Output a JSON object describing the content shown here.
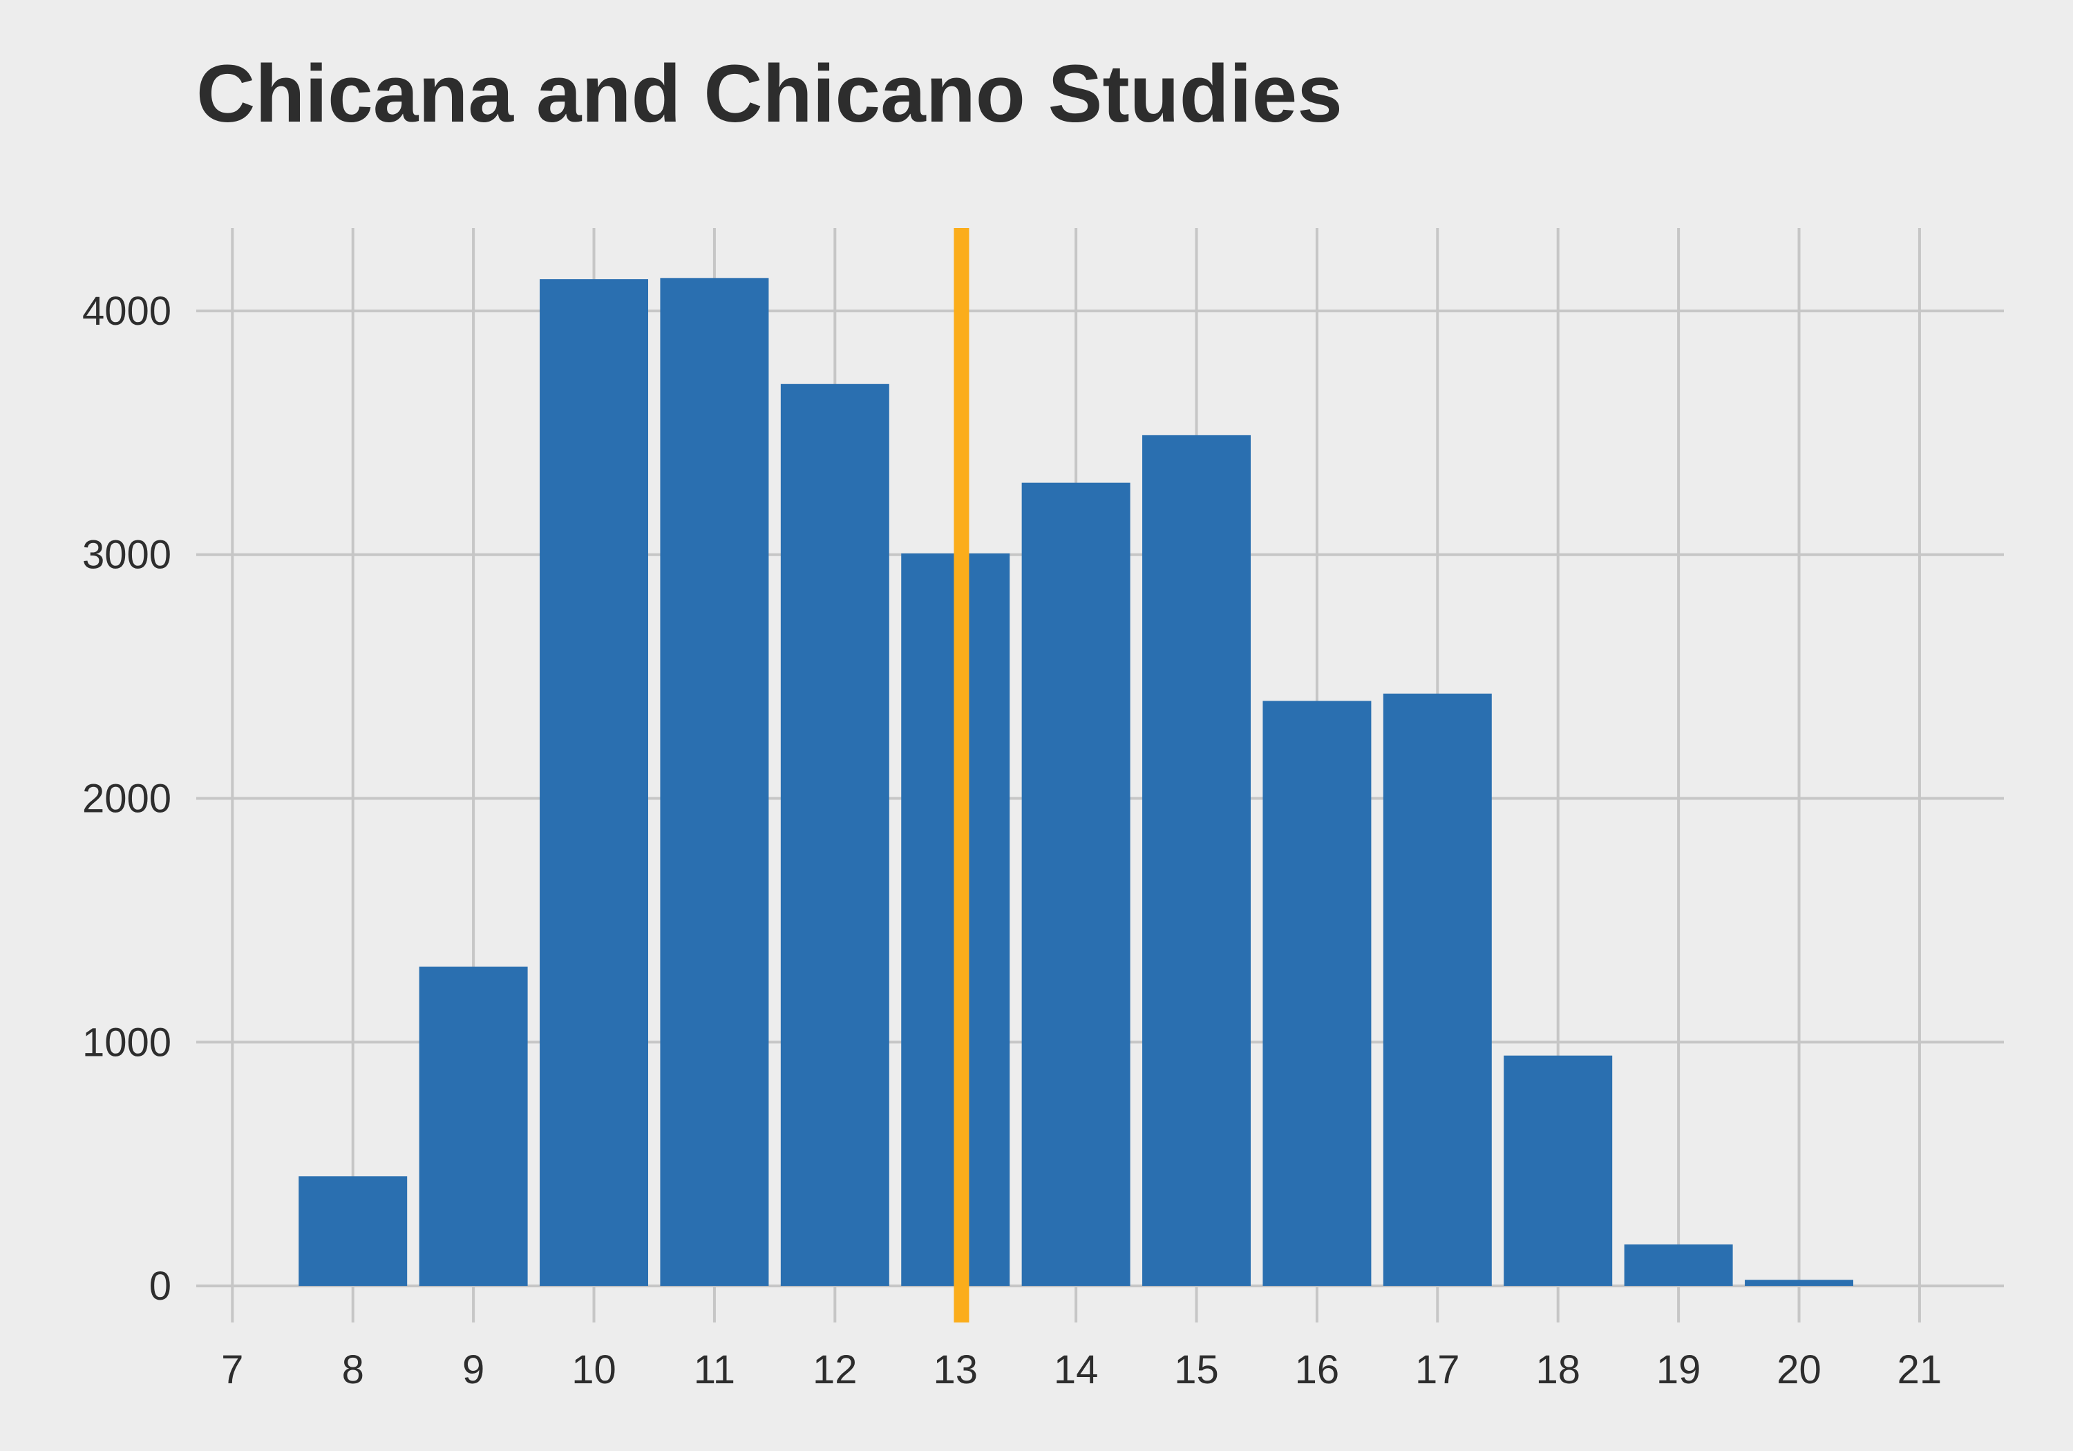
{
  "chart_data": {
    "type": "bar",
    "title": "Chicana and Chicano Studies",
    "xlabel": "",
    "ylabel": "",
    "x": [
      8,
      9,
      10,
      11,
      12,
      13,
      14,
      15,
      16,
      17,
      18,
      19,
      20
    ],
    "values": [
      450,
      1310,
      4130,
      4135,
      3700,
      3005,
      3295,
      3490,
      2400,
      2430,
      945,
      170,
      25
    ],
    "xlim": [
      6.7,
      21.7
    ],
    "ylim": [
      -150,
      4340
    ],
    "x_ticks": [
      7,
      8,
      9,
      10,
      11,
      12,
      13,
      14,
      15,
      16,
      17,
      18,
      19,
      20,
      21
    ],
    "y_ticks": [
      0,
      1000,
      2000,
      3000,
      4000
    ],
    "reference_line": {
      "x": 13.05
    },
    "grid": true,
    "colors": {
      "background": "#ededed",
      "grid": "#c6c6c6",
      "bar": "#2a6fb0",
      "reference_line": "#fbad1b",
      "text": "#2d2d2d"
    }
  }
}
